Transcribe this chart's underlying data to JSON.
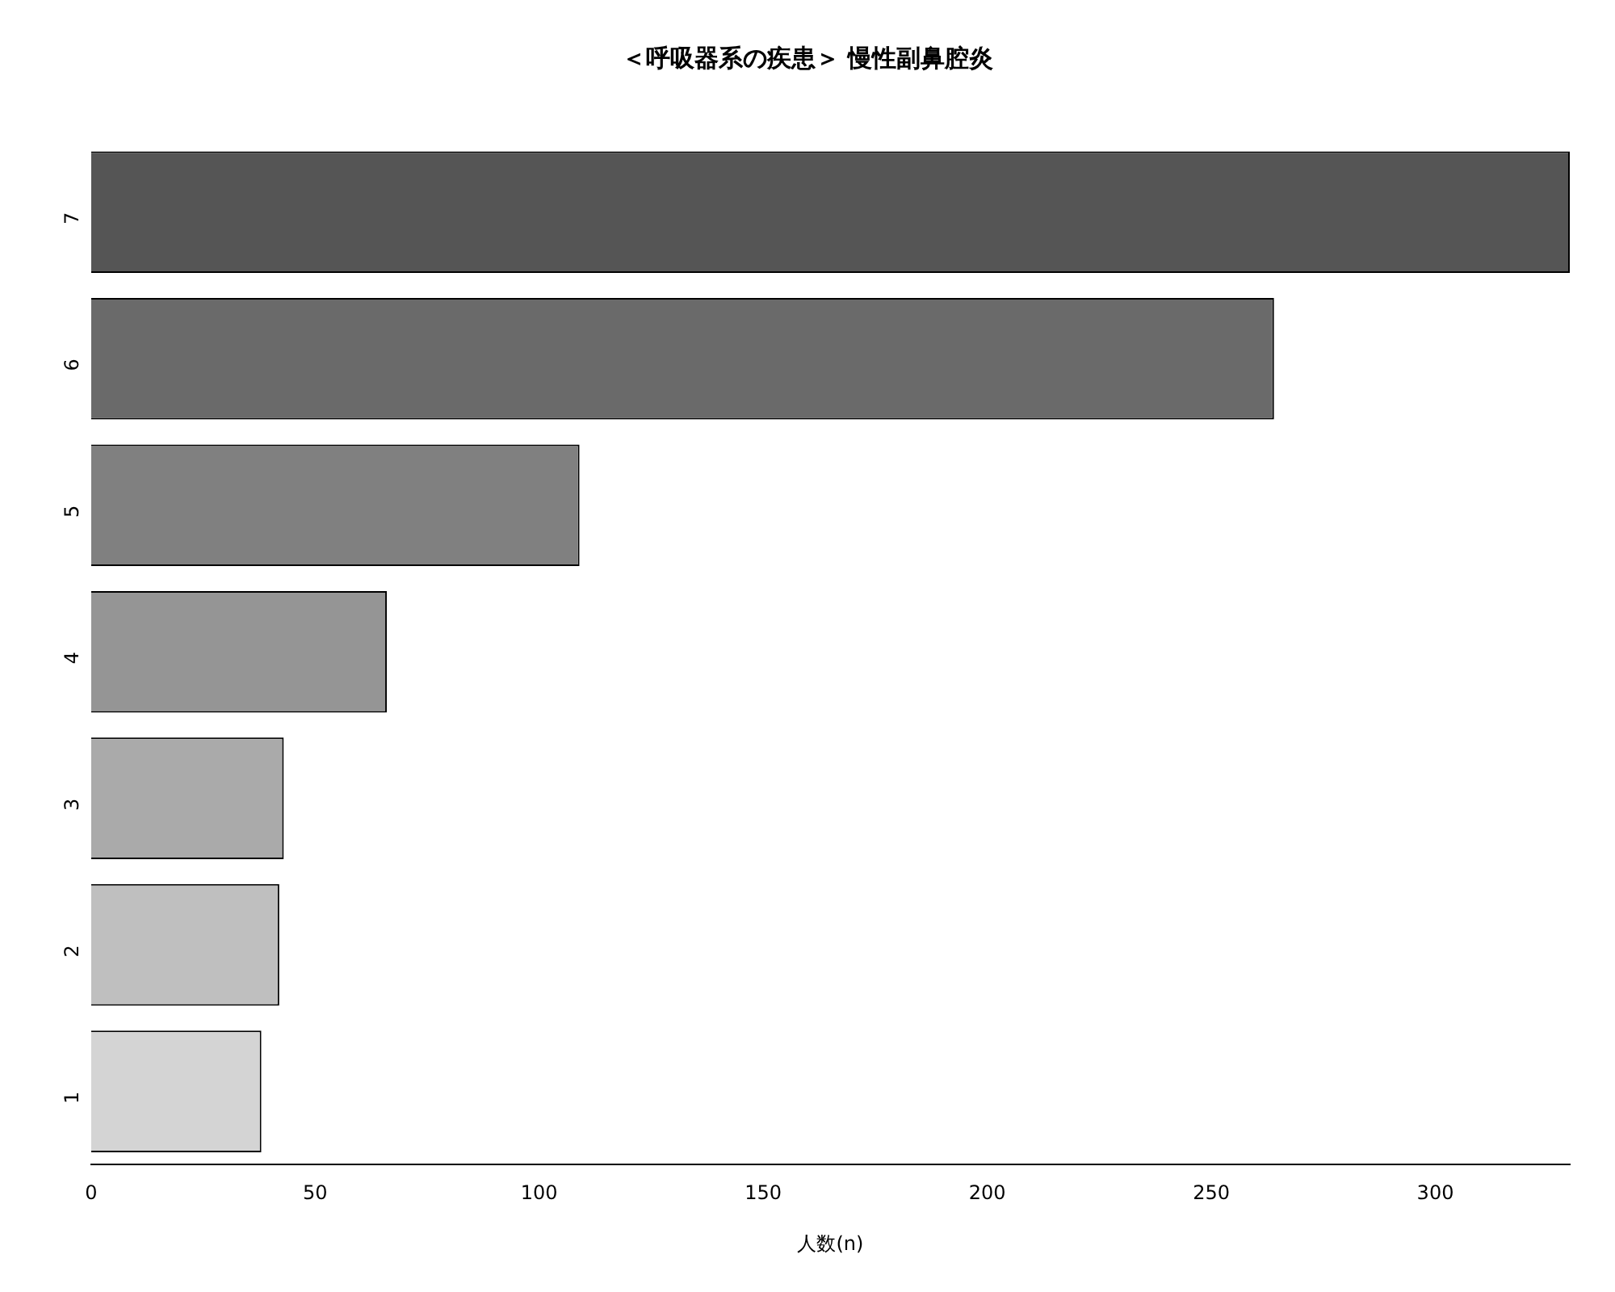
{
  "chart_data": {
    "type": "bar",
    "orientation": "horizontal",
    "title": "＜呼吸器系の疾患＞ 慢性副鼻腔炎",
    "xlabel": "人数(n)",
    "categories": [
      "7",
      "6",
      "5",
      "4",
      "3",
      "2",
      "1"
    ],
    "values": [
      330,
      264,
      109,
      66,
      43,
      42,
      38
    ],
    "colors": [
      "#555555",
      "#6a6a6a",
      "#808080",
      "#959595",
      "#aaaaaa",
      "#bfbfbf",
      "#d4d4d4"
    ],
    "xlim": [
      0,
      330
    ],
    "xticks": [
      0,
      50,
      100,
      150,
      200,
      250,
      300
    ],
    "grid": false,
    "legend": false
  }
}
